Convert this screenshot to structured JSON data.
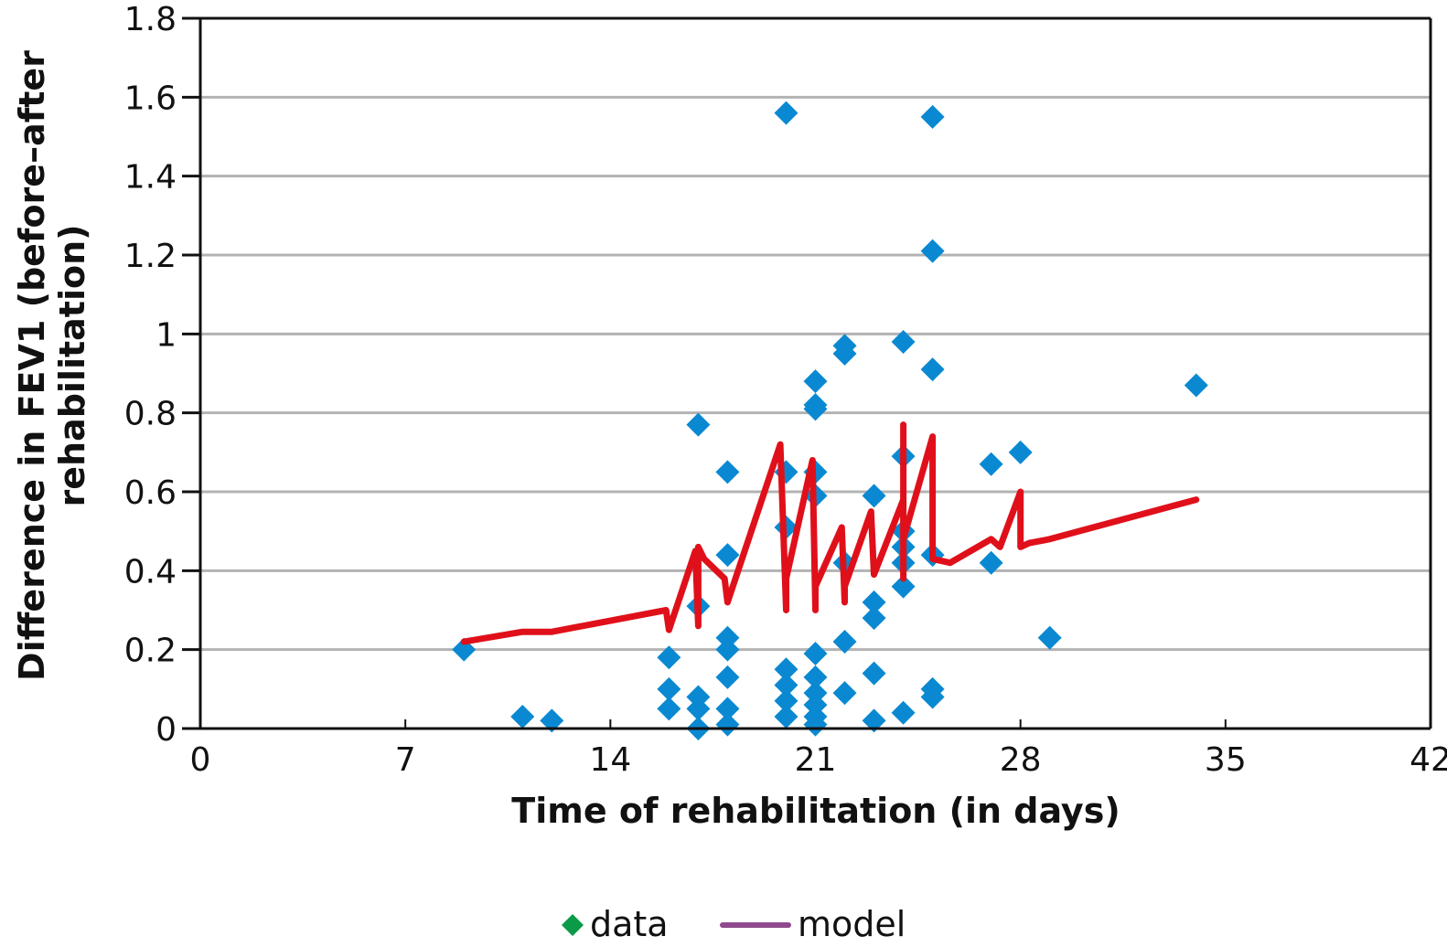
{
  "chart_data": {
    "type": "scatter",
    "title": "",
    "xlabel": "Time of rehabilitation (in days)",
    "ylabel_lines": [
      "Difference in FEV1 (before–after",
      "rehabilitation)"
    ],
    "xlim": [
      0,
      42
    ],
    "ylim": [
      0,
      1.8
    ],
    "xticks": [
      0,
      7,
      14,
      21,
      28,
      35,
      42
    ],
    "xtick_labels": [
      "0",
      "7",
      "14",
      "21",
      "28",
      "35",
      "42"
    ],
    "yticks": [
      0,
      0.2,
      0.4,
      0.6,
      0.8,
      1.0,
      1.2,
      1.4,
      1.6,
      1.8
    ],
    "ytick_labels": [
      "0",
      "0.2",
      "0.4",
      "0.6",
      "0.8",
      "1",
      "1.2",
      "1.4",
      "1.6",
      "1.8"
    ],
    "grid": "horizontal",
    "legend": {
      "placement": "bottom-center",
      "items": [
        {
          "label": "data",
          "marker": "diamond",
          "color": "#0a9a48"
        },
        {
          "label": "model",
          "marker": "line",
          "color": "#8e4a8c"
        }
      ]
    },
    "series": [
      {
        "name": "data",
        "kind": "scatter",
        "marker": "diamond",
        "color": "#0a89d2",
        "points": [
          [
            9,
            0.2
          ],
          [
            11,
            0.03
          ],
          [
            12,
            0.02
          ],
          [
            16,
            0.18
          ],
          [
            16,
            0.1
          ],
          [
            16,
            0.05
          ],
          [
            17,
            0.77
          ],
          [
            17,
            0.31
          ],
          [
            17,
            0.08
          ],
          [
            17,
            0.05
          ],
          [
            17,
            0.0
          ],
          [
            18,
            0.65
          ],
          [
            18,
            0.44
          ],
          [
            18,
            0.23
          ],
          [
            18,
            0.2
          ],
          [
            18,
            0.13
          ],
          [
            18,
            0.05
          ],
          [
            18,
            0.01
          ],
          [
            20,
            1.56
          ],
          [
            20,
            0.65
          ],
          [
            20,
            0.51
          ],
          [
            20,
            0.15
          ],
          [
            20,
            0.11
          ],
          [
            20,
            0.07
          ],
          [
            20,
            0.03
          ],
          [
            21,
            0.88
          ],
          [
            21,
            0.82
          ],
          [
            21,
            0.81
          ],
          [
            21,
            0.65
          ],
          [
            21,
            0.59
          ],
          [
            21,
            0.19
          ],
          [
            21,
            0.13
          ],
          [
            21,
            0.09
          ],
          [
            21,
            0.06
          ],
          [
            21,
            0.03
          ],
          [
            21,
            0.01
          ],
          [
            22,
            0.97
          ],
          [
            22,
            0.95
          ],
          [
            22,
            0.42
          ],
          [
            22,
            0.22
          ],
          [
            22,
            0.09
          ],
          [
            23,
            0.59
          ],
          [
            23,
            0.32
          ],
          [
            23,
            0.28
          ],
          [
            23,
            0.14
          ],
          [
            23,
            0.02
          ],
          [
            24,
            0.98
          ],
          [
            24,
            0.69
          ],
          [
            24,
            0.5
          ],
          [
            24,
            0.46
          ],
          [
            24,
            0.42
          ],
          [
            24,
            0.36
          ],
          [
            24,
            0.04
          ],
          [
            25,
            1.55
          ],
          [
            25,
            1.21
          ],
          [
            25,
            0.91
          ],
          [
            25,
            0.44
          ],
          [
            25,
            0.1
          ],
          [
            25,
            0.08
          ],
          [
            27,
            0.67
          ],
          [
            27,
            0.42
          ],
          [
            28,
            0.7
          ],
          [
            29,
            0.23
          ],
          [
            34,
            0.87
          ]
        ]
      },
      {
        "name": "model",
        "kind": "line",
        "color": "#e0101a",
        "points": [
          [
            9,
            0.22
          ],
          [
            11,
            0.245
          ],
          [
            12,
            0.245
          ],
          [
            15.9,
            0.3
          ],
          [
            16,
            0.25
          ],
          [
            16.9,
            0.45
          ],
          [
            17,
            0.26
          ],
          [
            17,
            0.46
          ],
          [
            17.2,
            0.43
          ],
          [
            17.9,
            0.38
          ],
          [
            18,
            0.32
          ],
          [
            19.8,
            0.72
          ],
          [
            20,
            0.3
          ],
          [
            20,
            0.38
          ],
          [
            20.9,
            0.68
          ],
          [
            21,
            0.3
          ],
          [
            21,
            0.36
          ],
          [
            21.9,
            0.51
          ],
          [
            22,
            0.32
          ],
          [
            22,
            0.36
          ],
          [
            22.9,
            0.55
          ],
          [
            23,
            0.39
          ],
          [
            24,
            0.58
          ],
          [
            24,
            0.38
          ],
          [
            24,
            0.77
          ],
          [
            24,
            0.48
          ],
          [
            25,
            0.74
          ],
          [
            25,
            0.43
          ],
          [
            25.6,
            0.42
          ],
          [
            27,
            0.48
          ],
          [
            27.3,
            0.46
          ],
          [
            28,
            0.6
          ],
          [
            28,
            0.46
          ],
          [
            28.3,
            0.47
          ],
          [
            29,
            0.48
          ],
          [
            34,
            0.58
          ]
        ]
      }
    ]
  }
}
